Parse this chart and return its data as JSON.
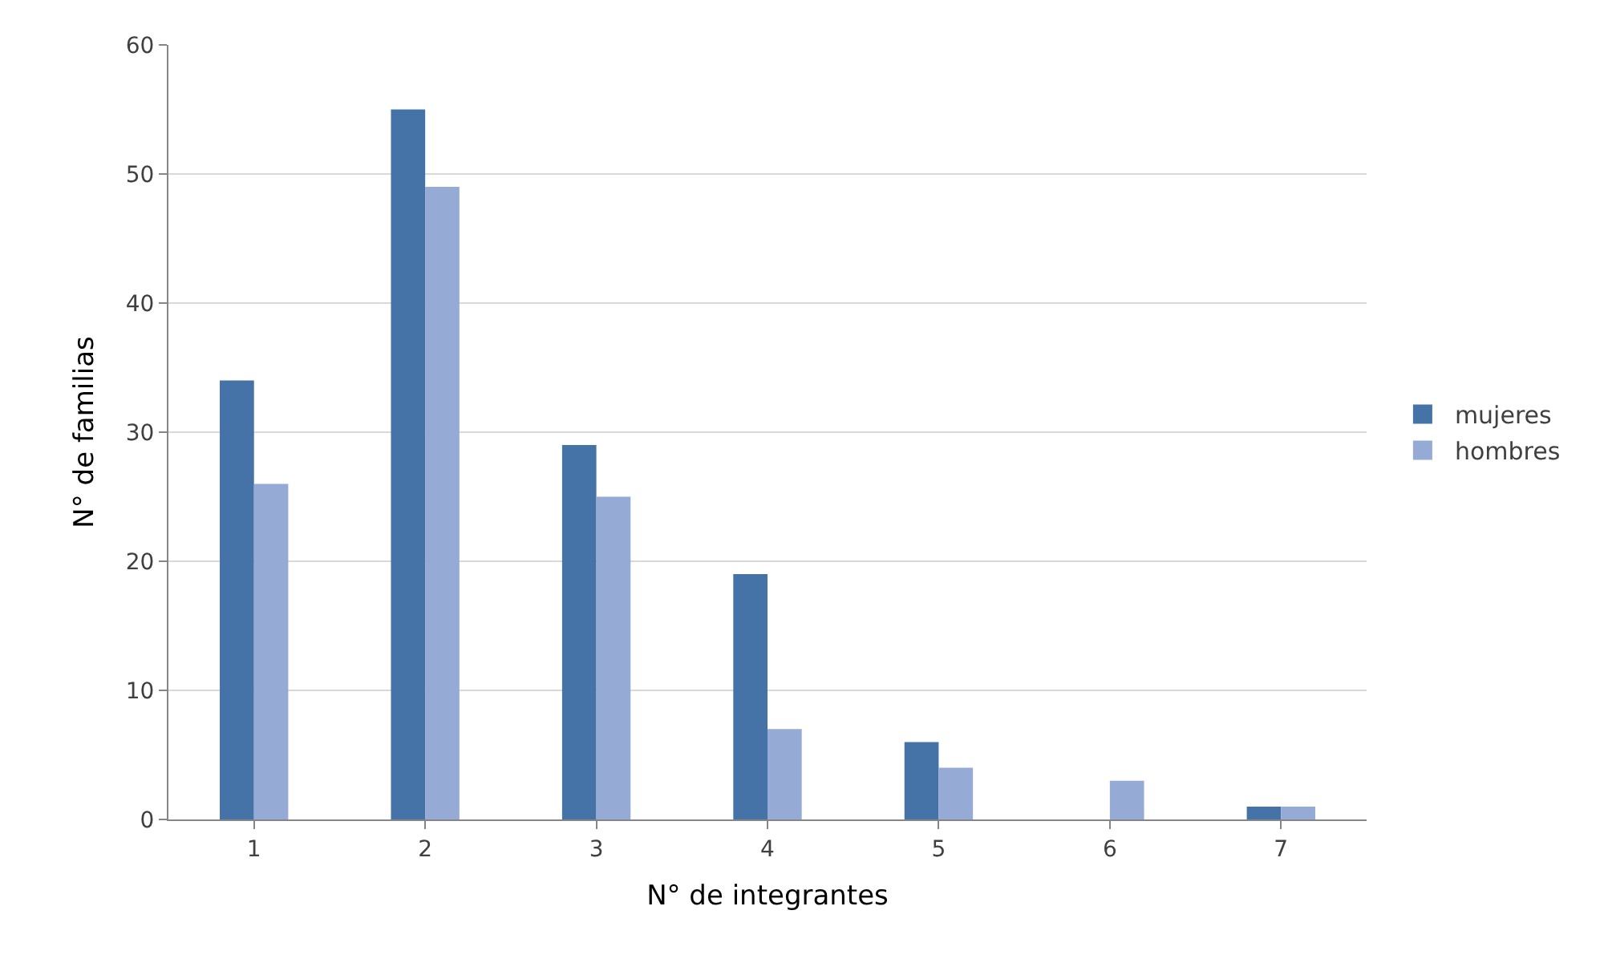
{
  "chart_data": {
    "type": "bar",
    "xlabel": "N° de integrantes",
    "ylabel": "N° de familias",
    "categories": [
      "1",
      "2",
      "3",
      "4",
      "5",
      "6",
      "7"
    ],
    "series": [
      {
        "name": "mujeres",
        "color": "#4572a7",
        "values": [
          34,
          55,
          29,
          19,
          6,
          0,
          1
        ]
      },
      {
        "name": "hombres",
        "color": "#95abd5",
        "values": [
          26,
          49,
          25,
          7,
          4,
          3,
          1
        ]
      }
    ],
    "ylim": [
      0,
      60
    ],
    "yticks": [
      0,
      10,
      20,
      30,
      40,
      50,
      60
    ],
    "grid": "y",
    "legend": "right"
  }
}
